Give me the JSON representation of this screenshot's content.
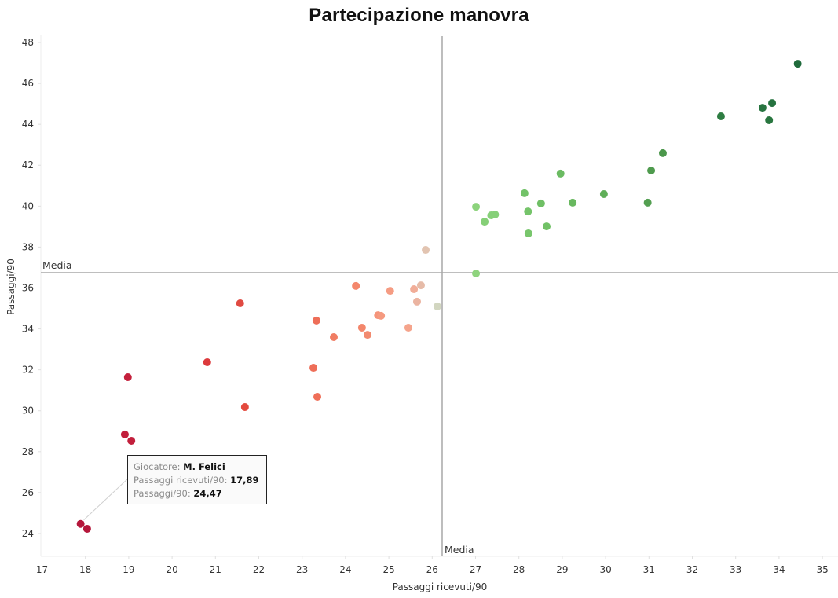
{
  "title": "Partecipazione manovra",
  "chart_data": {
    "type": "scatter",
    "title": "Partecipazione manovra",
    "xlabel": "Passaggi ricevuti/90",
    "ylabel": "Passaggi/90",
    "xlim": [
      16.98,
      35.3
    ],
    "ylim": [
      22.9,
      48.4
    ],
    "xticks": [
      17,
      18,
      19,
      20,
      21,
      22,
      23,
      24,
      25,
      26,
      27,
      28,
      29,
      30,
      31,
      32,
      33,
      34,
      35
    ],
    "yticks": [
      24,
      26,
      28,
      30,
      32,
      34,
      36,
      38,
      40,
      42,
      44,
      46,
      48
    ],
    "grid": false,
    "legend": null,
    "reference_lines": [
      {
        "axis": "x",
        "value": 26.23,
        "label": "Media"
      },
      {
        "axis": "y",
        "value": 36.75,
        "label": "Media"
      }
    ],
    "color_encoding": "diverging red-to-green by combined value (dark red low, grey mid, dark green high)",
    "points": [
      {
        "x": 17.89,
        "y": 24.47,
        "color": "#b5173b",
        "label": "M. Felici"
      },
      {
        "x": 18.04,
        "y": 24.23,
        "color": "#b5173b"
      },
      {
        "x": 18.91,
        "y": 28.84,
        "color": "#c21f3c"
      },
      {
        "x": 19.06,
        "y": 28.53,
        "color": "#c21f3c"
      },
      {
        "x": 18.98,
        "y": 31.64,
        "color": "#c4203c"
      },
      {
        "x": 20.81,
        "y": 32.37,
        "color": "#dc3a3c"
      },
      {
        "x": 21.68,
        "y": 30.18,
        "color": "#e34a3e"
      },
      {
        "x": 21.57,
        "y": 35.25,
        "color": "#e04a42"
      },
      {
        "x": 23.26,
        "y": 32.1,
        "color": "#ee6e58"
      },
      {
        "x": 23.35,
        "y": 30.68,
        "color": "#ef6f58"
      },
      {
        "x": 23.33,
        "y": 34.41,
        "color": "#ee6e58"
      },
      {
        "x": 23.73,
        "y": 33.6,
        "color": "#f07d63"
      },
      {
        "x": 24.24,
        "y": 36.1,
        "color": "#f4876c"
      },
      {
        "x": 24.38,
        "y": 34.06,
        "color": "#f3866b"
      },
      {
        "x": 24.51,
        "y": 33.71,
        "color": "#f28a6f"
      },
      {
        "x": 24.75,
        "y": 34.67,
        "color": "#f5947a"
      },
      {
        "x": 24.82,
        "y": 34.64,
        "color": "#f59a80"
      },
      {
        "x": 25.03,
        "y": 35.86,
        "color": "#f59c83"
      },
      {
        "x": 25.45,
        "y": 34.06,
        "color": "#f5a48c"
      },
      {
        "x": 25.58,
        "y": 35.94,
        "color": "#f1ad98"
      },
      {
        "x": 25.65,
        "y": 35.33,
        "color": "#ebb4a1"
      },
      {
        "x": 25.74,
        "y": 36.13,
        "color": "#e6bba8"
      },
      {
        "x": 25.85,
        "y": 37.86,
        "color": "#e2c4b1"
      },
      {
        "x": 26.12,
        "y": 35.1,
        "color": "#d2d6c0"
      },
      {
        "x": 27.01,
        "y": 36.71,
        "color": "#8fd47e"
      },
      {
        "x": 27.01,
        "y": 39.97,
        "color": "#8cd37c"
      },
      {
        "x": 27.21,
        "y": 39.24,
        "color": "#85cf77"
      },
      {
        "x": 27.36,
        "y": 39.55,
        "color": "#86d079"
      },
      {
        "x": 27.45,
        "y": 39.59,
        "color": "#86d079"
      },
      {
        "x": 28.13,
        "y": 40.63,
        "color": "#72c268"
      },
      {
        "x": 28.21,
        "y": 39.74,
        "color": "#75c46a"
      },
      {
        "x": 28.22,
        "y": 38.67,
        "color": "#78c66c"
      },
      {
        "x": 28.51,
        "y": 40.13,
        "color": "#6fbf65"
      },
      {
        "x": 28.64,
        "y": 39.01,
        "color": "#71c166"
      },
      {
        "x": 28.96,
        "y": 41.59,
        "color": "#6bbb62"
      },
      {
        "x": 29.24,
        "y": 40.17,
        "color": "#68b85f"
      },
      {
        "x": 29.96,
        "y": 40.59,
        "color": "#5fae58"
      },
      {
        "x": 30.97,
        "y": 40.17,
        "color": "#539f51"
      },
      {
        "x": 31.05,
        "y": 41.74,
        "color": "#4f9b4e"
      },
      {
        "x": 31.32,
        "y": 42.59,
        "color": "#4b974b"
      },
      {
        "x": 32.66,
        "y": 44.39,
        "color": "#2e7d42"
      },
      {
        "x": 33.62,
        "y": 44.81,
        "color": "#277440"
      },
      {
        "x": 33.84,
        "y": 45.04,
        "color": "#25723f"
      },
      {
        "x": 33.77,
        "y": 44.2,
        "color": "#28763f"
      },
      {
        "x": 34.43,
        "y": 46.96,
        "color": "#1f6a3b"
      }
    ]
  },
  "tooltip": {
    "player_label": "Giocatore",
    "player_value": "M. Felici",
    "x_label": "Passaggi ricevuti/90",
    "x_value": "17,89",
    "y_label": "Passaggi/90",
    "y_value": "24,47"
  }
}
